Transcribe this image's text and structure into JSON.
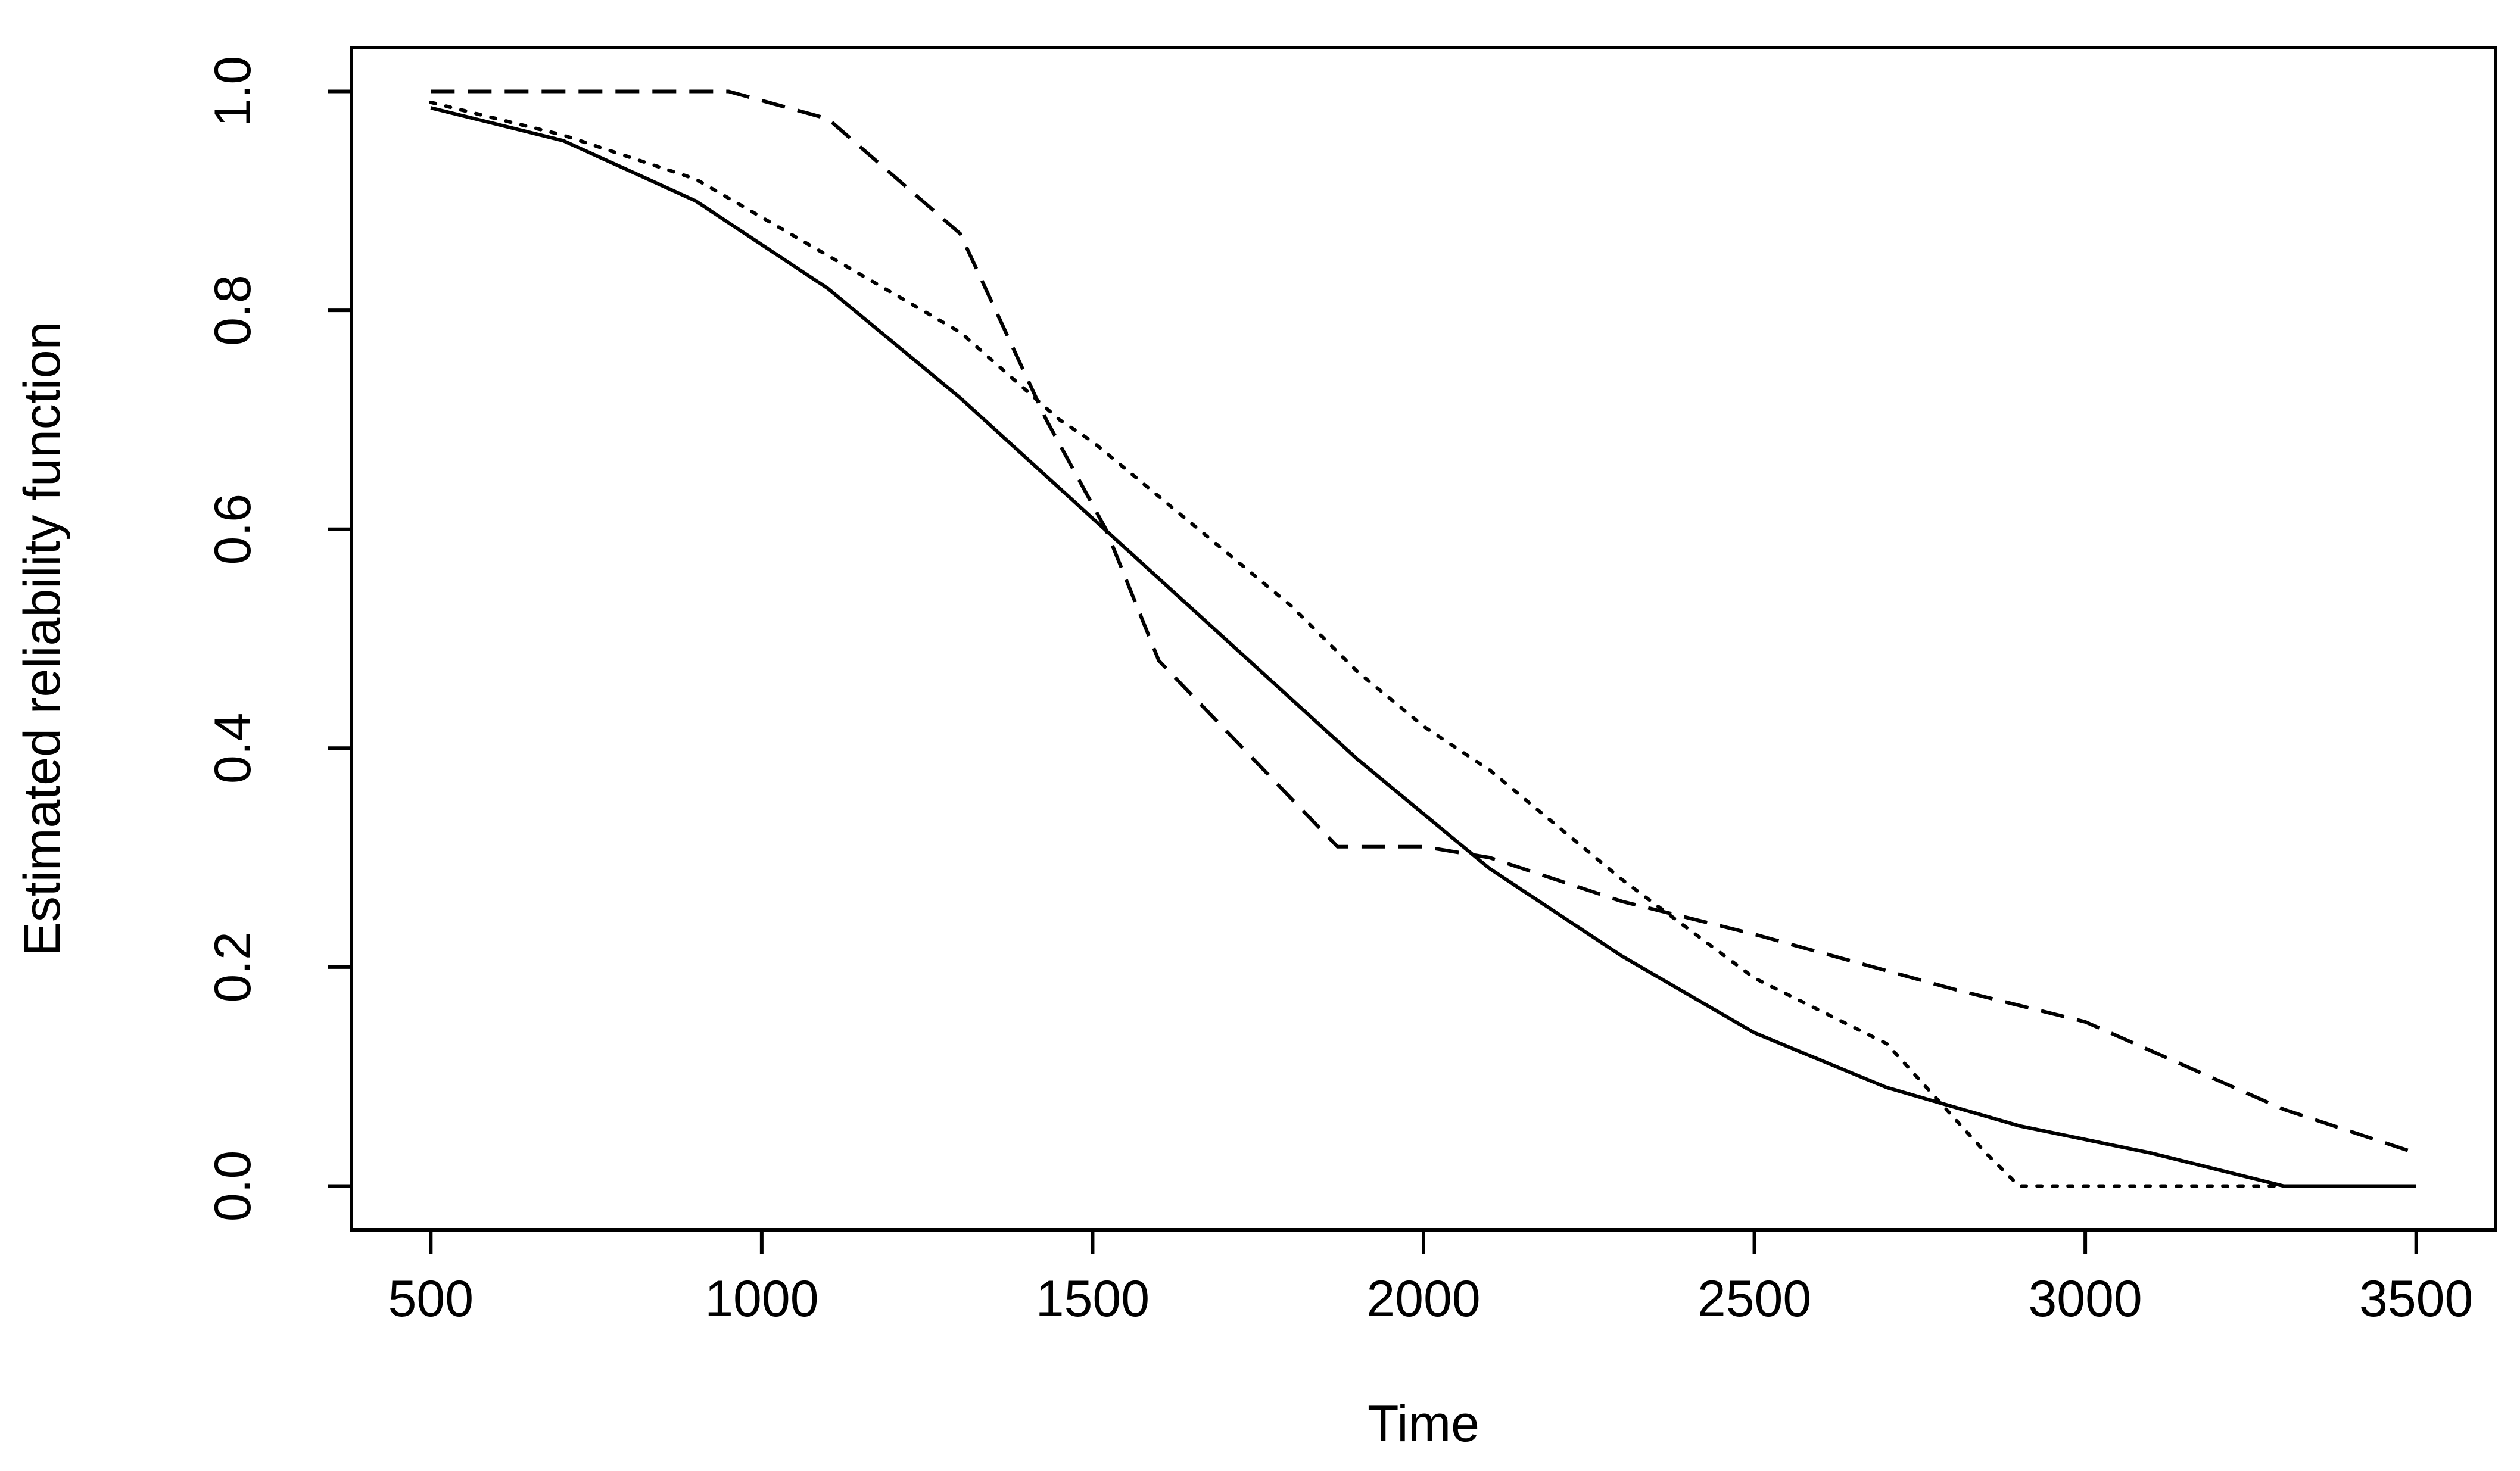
{
  "chart_data": {
    "type": "line",
    "title": "",
    "xlabel": "Time",
    "ylabel": "Estimated reliability function",
    "xlim": [
      380,
      3620
    ],
    "ylim": [
      -0.04,
      1.04
    ],
    "xticks": [
      500,
      1000,
      1500,
      2000,
      2500,
      3000,
      3500
    ],
    "yticks": [
      0.0,
      0.2,
      0.4,
      0.6,
      0.8,
      1.0
    ],
    "xtick_labels": [
      "500",
      "1000",
      "1500",
      "2000",
      "2500",
      "3000",
      "3500"
    ],
    "ytick_labels": [
      "0.0",
      "0.2",
      "0.4",
      "0.6",
      "0.8",
      "1.0"
    ],
    "grid": false,
    "legend": "none",
    "series": [
      {
        "style": "solid",
        "x": [
          500,
          700,
          900,
          1100,
          1300,
          1500,
          1700,
          1900,
          2100,
          2300,
          2500,
          2700,
          2900,
          3100,
          3300,
          3500
        ],
        "y": [
          0.985,
          0.955,
          0.9,
          0.82,
          0.72,
          0.61,
          0.5,
          0.39,
          0.29,
          0.21,
          0.14,
          0.09,
          0.055,
          0.03,
          0.0,
          0.0
        ]
      },
      {
        "style": "dashed",
        "x": [
          500,
          950,
          1100,
          1300,
          1430,
          1520,
          1600,
          1870,
          2000,
          2100,
          2300,
          2500,
          2800,
          3000,
          3300,
          3500
        ],
        "y": [
          1.0,
          1.0,
          0.975,
          0.87,
          0.7,
          0.6,
          0.48,
          0.31,
          0.31,
          0.3,
          0.26,
          0.23,
          0.18,
          0.15,
          0.07,
          0.03
        ]
      },
      {
        "style": "dotted",
        "x": [
          500,
          700,
          900,
          1100,
          1300,
          1450,
          1500,
          1600,
          1700,
          1800,
          1900,
          2000,
          2100,
          2300,
          2500,
          2700,
          2850,
          2900,
          3300
        ],
        "y": [
          0.99,
          0.96,
          0.92,
          0.85,
          0.78,
          0.7,
          0.68,
          0.63,
          0.58,
          0.53,
          0.47,
          0.42,
          0.38,
          0.28,
          0.19,
          0.13,
          0.03,
          0.0,
          0.0
        ]
      }
    ]
  }
}
